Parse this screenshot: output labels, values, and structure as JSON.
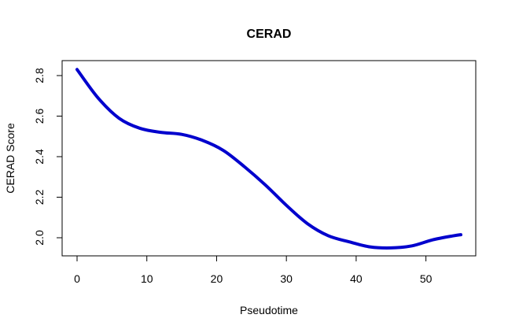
{
  "chart_data": {
    "type": "line",
    "title": "CERAD",
    "xlabel": "Pseudotime",
    "ylabel": "CERAD Score",
    "xlim": [
      0,
      55
    ],
    "ylim": [
      1.95,
      2.83
    ],
    "x_ticks": [
      0,
      10,
      20,
      30,
      40,
      50
    ],
    "y_ticks": [
      2.0,
      2.2,
      2.4,
      2.6,
      2.8
    ],
    "x_tick_labels": [
      "0",
      "10",
      "20",
      "30",
      "40",
      "50"
    ],
    "y_tick_labels": [
      "2.0",
      "2.2",
      "2.4",
      "2.6",
      "2.8"
    ],
    "grid": false,
    "series": [
      {
        "color": "#0000CD",
        "x": [
          0,
          3,
          6,
          9,
          12,
          15,
          18,
          21,
          24,
          27,
          30,
          33,
          36,
          39,
          42,
          45,
          48,
          51,
          54,
          55
        ],
        "y": [
          2.83,
          2.69,
          2.59,
          2.54,
          2.52,
          2.51,
          2.48,
          2.43,
          2.35,
          2.26,
          2.16,
          2.07,
          2.01,
          1.98,
          1.955,
          1.95,
          1.96,
          1.99,
          2.01,
          2.015
        ]
      }
    ]
  }
}
